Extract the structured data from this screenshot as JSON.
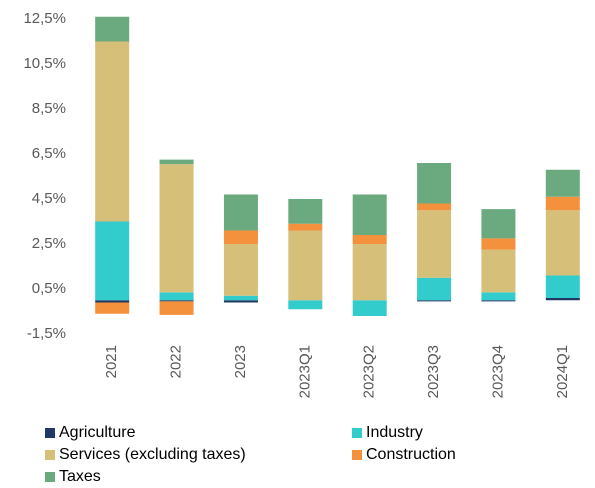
{
  "chart_data": {
    "type": "stacked_bar",
    "categories": [
      "2021",
      "2022",
      "2023",
      "2023Q1",
      "2023Q2",
      "2023Q3",
      "2023Q4",
      "2024Q1"
    ],
    "series": [
      {
        "name": "Agriculture",
        "color": "#1f3864",
        "values": [
          -0.1,
          -0.05,
          -0.1,
          0,
          0,
          -0.05,
          -0.05,
          0.1
        ]
      },
      {
        "name": "Industry",
        "color": "#33cccc",
        "values": [
          3.5,
          0.35,
          0.2,
          -0.4,
          -0.7,
          1.0,
          0.35,
          1.0
        ]
      },
      {
        "name": "Services (excluding taxes)",
        "color": "#d6bf78",
        "values": [
          8.0,
          5.7,
          2.3,
          3.1,
          2.5,
          3.0,
          1.9,
          2.9
        ]
      },
      {
        "name": "Construction",
        "color": "#f4913c",
        "values": [
          -0.5,
          -0.6,
          0.6,
          0.3,
          0.4,
          0.3,
          0.5,
          0.6
        ]
      },
      {
        "name": "Taxes",
        "color": "#6aaa7e",
        "values": [
          1.1,
          0.2,
          1.6,
          1.1,
          1.8,
          1.8,
          1.3,
          1.2
        ]
      }
    ],
    "ylim": [
      -1.5,
      12.5
    ],
    "yticks": [
      {
        "value": -1.5,
        "label": "-1,5%"
      },
      {
        "value": 0.5,
        "label": "0,5%"
      },
      {
        "value": 2.5,
        "label": "2,5%"
      },
      {
        "value": 4.5,
        "label": "4,5%"
      },
      {
        "value": 6.5,
        "label": "6,5%"
      },
      {
        "value": 8.5,
        "label": "8,5%"
      },
      {
        "value": 10.5,
        "label": "10,5%"
      },
      {
        "value": 12.5,
        "label": "12,5%"
      }
    ],
    "grid": false
  }
}
